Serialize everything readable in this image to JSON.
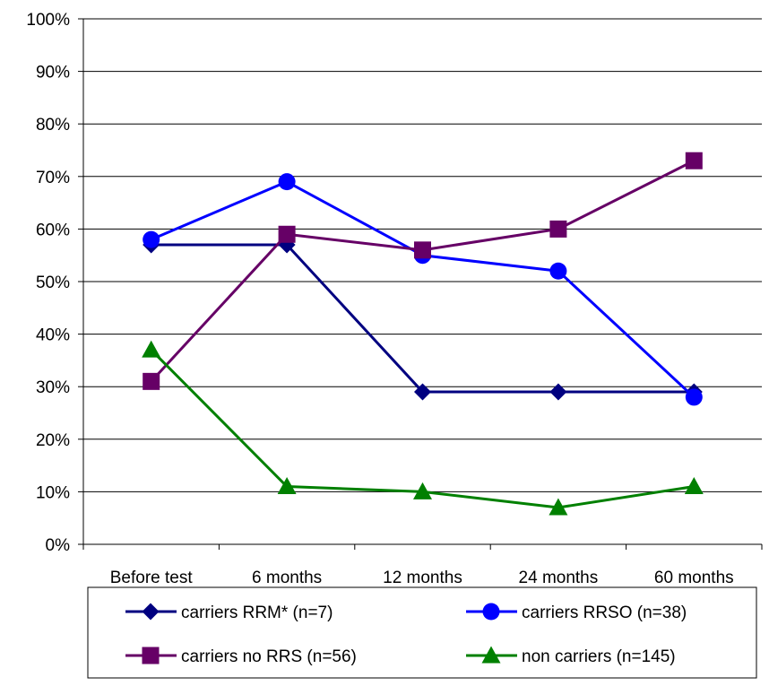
{
  "chart_data": {
    "type": "line",
    "categories": [
      "Before test",
      "6 months",
      "12 months",
      "24 months",
      "60 months"
    ],
    "ylim": [
      0,
      100
    ],
    "yticks": [
      0,
      10,
      20,
      30,
      40,
      50,
      60,
      70,
      80,
      90,
      100
    ],
    "y_tick_format": "{v}%",
    "grid": true,
    "legend_position": "bottom",
    "series": [
      {
        "name": "carriers RRM* (n=7)",
        "values": [
          57,
          57,
          29,
          29,
          29
        ],
        "color": "#000080",
        "marker": "diamond"
      },
      {
        "name": "carriers RRSO (n=38)",
        "values": [
          58,
          69,
          55,
          52,
          28
        ],
        "color": "#0000FF",
        "marker": "circle"
      },
      {
        "name": "carriers no RRS (n=56)",
        "values": [
          31,
          59,
          56,
          60,
          73
        ],
        "color": "#660066",
        "marker": "square"
      },
      {
        "name": "non carriers (n=145)",
        "values": [
          37,
          11,
          10,
          7,
          11
        ],
        "color": "#008000",
        "marker": "triangle"
      }
    ]
  }
}
